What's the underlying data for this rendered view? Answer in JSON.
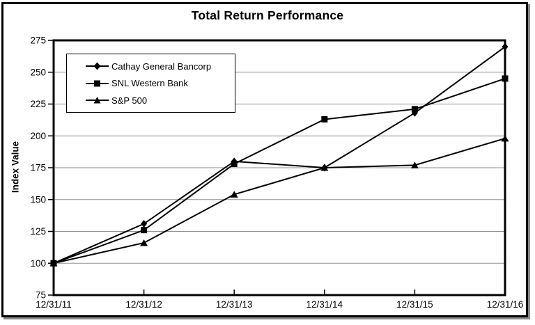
{
  "title": "Total Return Performance",
  "colors": {
    "series_line": "#000000",
    "gridline": "#8f8f8f",
    "frame": "#000000",
    "background": "#ffffff",
    "legend_border": "#000000"
  },
  "chart_data": {
    "type": "line",
    "title": "Total Return Performance",
    "xlabel": "",
    "ylabel": "Index Value",
    "x_labels": [
      "12/31/11",
      "12/31/12",
      "12/31/13",
      "12/31/14",
      "12/31/15",
      "12/31/16"
    ],
    "ylim": [
      75,
      275
    ],
    "ytick_step": 25,
    "grid": true,
    "legend_position": "upper-left-inside",
    "series": [
      {
        "name": "Cathay General Bancorp",
        "marker": "diamond",
        "color": "#000000",
        "values": [
          100,
          131,
          180,
          175,
          218,
          270
        ]
      },
      {
        "name": "SNL Western Bank",
        "marker": "square",
        "color": "#000000",
        "values": [
          100,
          126,
          178,
          213,
          221,
          245
        ]
      },
      {
        "name": "S&P 500",
        "marker": "triangle",
        "color": "#000000",
        "values": [
          100,
          116,
          154,
          175,
          177,
          198
        ]
      }
    ]
  }
}
